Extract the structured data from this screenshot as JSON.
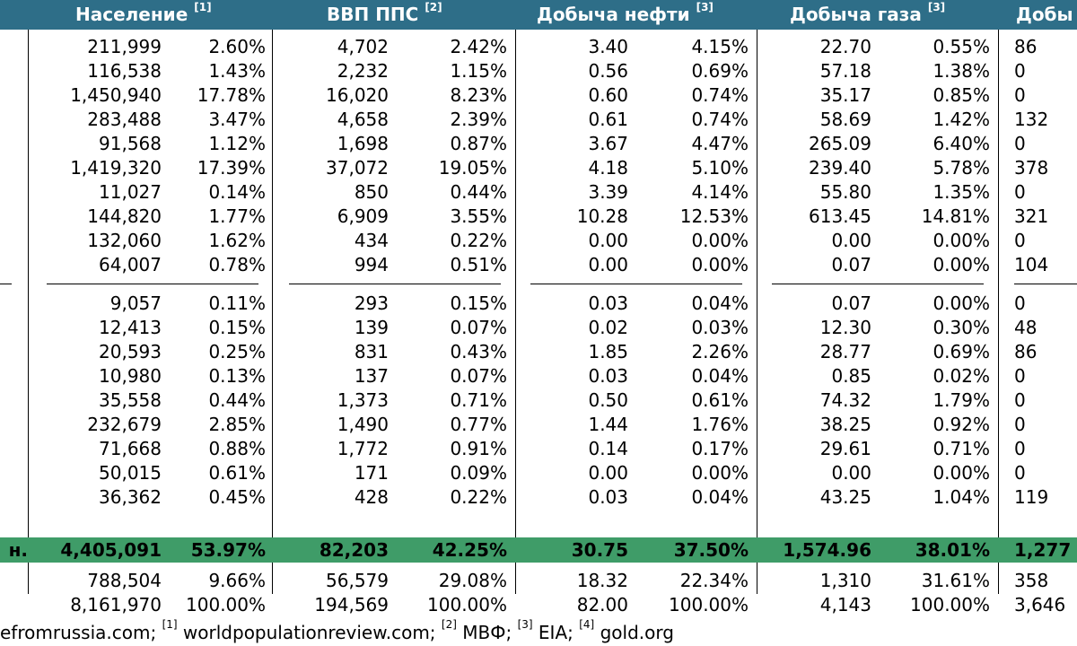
{
  "headers": [
    {
      "label": "Население",
      "ref": "[1]"
    },
    {
      "label": "ВВП ППС",
      "ref": "[2]"
    },
    {
      "label": "Добыча нефти",
      "ref": "[3]"
    },
    {
      "label": "Добыча газа",
      "ref": "[3]"
    },
    {
      "label": "Добы",
      "ref": ""
    }
  ],
  "rows": [
    {
      "pop": "211,999",
      "pop_pct": "2.60%",
      "gdp": "4,702",
      "gdp_pct": "2.42%",
      "oil": "3.40",
      "oil_pct": "4.15%",
      "gas": "22.70",
      "gas_pct": "0.55%",
      "last": "86"
    },
    {
      "pop": "116,538",
      "pop_pct": "1.43%",
      "gdp": "2,232",
      "gdp_pct": "1.15%",
      "oil": "0.56",
      "oil_pct": "0.69%",
      "gas": "57.18",
      "gas_pct": "1.38%",
      "last": "0"
    },
    {
      "pop": "1,450,940",
      "pop_pct": "17.78%",
      "gdp": "16,020",
      "gdp_pct": "8.23%",
      "oil": "0.60",
      "oil_pct": "0.74%",
      "gas": "35.17",
      "gas_pct": "0.85%",
      "last": "0"
    },
    {
      "pop": "283,488",
      "pop_pct": "3.47%",
      "gdp": "4,658",
      "gdp_pct": "2.39%",
      "oil": "0.61",
      "oil_pct": "0.74%",
      "gas": "58.69",
      "gas_pct": "1.42%",
      "last": "132"
    },
    {
      "pop": "91,568",
      "pop_pct": "1.12%",
      "gdp": "1,698",
      "gdp_pct": "0.87%",
      "oil": "3.67",
      "oil_pct": "4.47%",
      "gas": "265.09",
      "gas_pct": "6.40%",
      "last": "0"
    },
    {
      "pop": "1,419,320",
      "pop_pct": "17.39%",
      "gdp": "37,072",
      "gdp_pct": "19.05%",
      "oil": "4.18",
      "oil_pct": "5.10%",
      "gas": "239.40",
      "gas_pct": "5.78%",
      "last": "378"
    },
    {
      "pop": "11,027",
      "pop_pct": "0.14%",
      "gdp": "850",
      "gdp_pct": "0.44%",
      "oil": "3.39",
      "oil_pct": "4.14%",
      "gas": "55.80",
      "gas_pct": "1.35%",
      "last": "0"
    },
    {
      "pop": "144,820",
      "pop_pct": "1.77%",
      "gdp": "6,909",
      "gdp_pct": "3.55%",
      "oil": "10.28",
      "oil_pct": "12.53%",
      "gas": "613.45",
      "gas_pct": "14.81%",
      "last": "321"
    },
    {
      "pop": "132,060",
      "pop_pct": "1.62%",
      "gdp": "434",
      "gdp_pct": "0.22%",
      "oil": "0.00",
      "oil_pct": "0.00%",
      "gas": "0.00",
      "gas_pct": "0.00%",
      "last": "0"
    },
    {
      "pop": "64,007",
      "pop_pct": "0.78%",
      "gdp": "994",
      "gdp_pct": "0.51%",
      "oil": "0.00",
      "oil_pct": "0.00%",
      "gas": "0.07",
      "gas_pct": "0.00%",
      "last": "104"
    },
    {
      "pop": "9,057",
      "pop_pct": "0.11%",
      "gdp": "293",
      "gdp_pct": "0.15%",
      "oil": "0.03",
      "oil_pct": "0.04%",
      "gas": "0.07",
      "gas_pct": "0.00%",
      "last": "0"
    },
    {
      "pop": "12,413",
      "pop_pct": "0.15%",
      "gdp": "139",
      "gdp_pct": "0.07%",
      "oil": "0.02",
      "oil_pct": "0.03%",
      "gas": "12.30",
      "gas_pct": "0.30%",
      "last": "48"
    },
    {
      "pop": "20,593",
      "pop_pct": "0.25%",
      "gdp": "831",
      "gdp_pct": "0.43%",
      "oil": "1.85",
      "oil_pct": "2.26%",
      "gas": "28.77",
      "gas_pct": "0.69%",
      "last": "86"
    },
    {
      "pop": "10,980",
      "pop_pct": "0.13%",
      "gdp": "137",
      "gdp_pct": "0.07%",
      "oil": "0.03",
      "oil_pct": "0.04%",
      "gas": "0.85",
      "gas_pct": "0.02%",
      "last": "0"
    },
    {
      "pop": "35,558",
      "pop_pct": "0.44%",
      "gdp": "1,373",
      "gdp_pct": "0.71%",
      "oil": "0.50",
      "oil_pct": "0.61%",
      "gas": "74.32",
      "gas_pct": "1.79%",
      "last": "0"
    },
    {
      "pop": "232,679",
      "pop_pct": "2.85%",
      "gdp": "1,490",
      "gdp_pct": "0.77%",
      "oil": "1.44",
      "oil_pct": "1.76%",
      "gas": "38.25",
      "gas_pct": "0.92%",
      "last": "0"
    },
    {
      "pop": "71,668",
      "pop_pct": "0.88%",
      "gdp": "1,772",
      "gdp_pct": "0.91%",
      "oil": "0.14",
      "oil_pct": "0.17%",
      "gas": "29.61",
      "gas_pct": "0.71%",
      "last": "0"
    },
    {
      "pop": "50,015",
      "pop_pct": "0.61%",
      "gdp": "171",
      "gdp_pct": "0.09%",
      "oil": "0.00",
      "oil_pct": "0.00%",
      "gas": "0.00",
      "gas_pct": "0.00%",
      "last": "0"
    },
    {
      "pop": "36,362",
      "pop_pct": "0.45%",
      "gdp": "428",
      "gdp_pct": "0.22%",
      "oil": "0.03",
      "oil_pct": "0.04%",
      "gas": "43.25",
      "gas_pct": "1.04%",
      "last": "119"
    }
  ],
  "total": {
    "label": "н.",
    "pop": "4,405,091",
    "pop_pct": "53.97%",
    "gdp": "82,203",
    "gdp_pct": "42.25%",
    "oil": "30.75",
    "oil_pct": "37.50%",
    "gas": "1,574.96",
    "gas_pct": "38.01%",
    "last": "1,277"
  },
  "bottom_rows": [
    {
      "pop": "788,504",
      "pop_pct": "9.66%",
      "gdp": "56,579",
      "gdp_pct": "29.08%",
      "oil": "18.32",
      "oil_pct": "22.34%",
      "gas": "1,310",
      "gas_pct": "31.61%",
      "last": "358"
    },
    {
      "pop": "8,161,970",
      "pop_pct": "100.00%",
      "gdp": "194,569",
      "gdp_pct": "100.00%",
      "oil": "82.00",
      "oil_pct": "100.00%",
      "gas": "4,143",
      "gas_pct": "100.00%",
      "last": "3,646"
    }
  ],
  "sources": {
    "s0": "efromrussia.com; ",
    "r1": "[1]",
    "s1": " worldpopulationreview.com; ",
    "r2": "[2]",
    "s2": " МВФ; ",
    "r3": "[3]",
    "s3": " EIA; ",
    "r4": "[4]",
    "s4": " gold.org"
  },
  "colors": {
    "header_bg": "#2e6e88",
    "total_bg": "#3f9c68"
  }
}
